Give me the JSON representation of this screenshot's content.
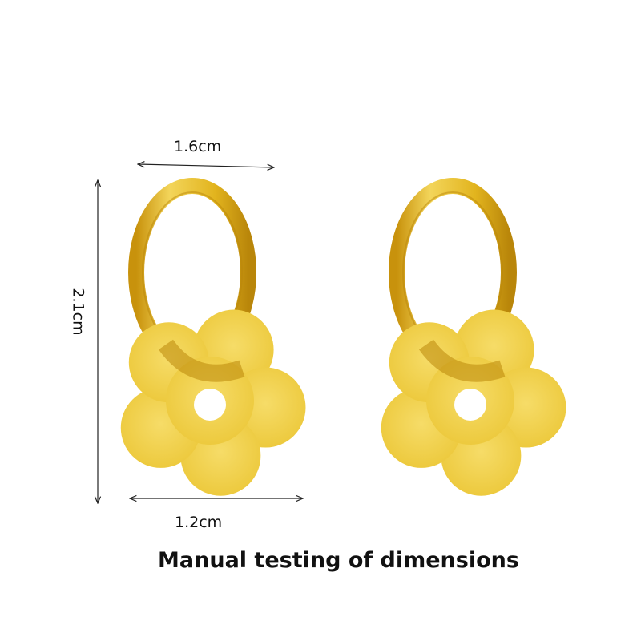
{
  "dimensions": {
    "width_label": "1.6cm",
    "height_label": "2.1cm",
    "pendant_label": "1.2cm"
  },
  "caption": "Manual testing of dimensions",
  "colors": {
    "gold_light": "#f2d04a",
    "gold_mid": "#e0b51c",
    "gold_dark": "#b9860a",
    "background": "#ffffff"
  }
}
